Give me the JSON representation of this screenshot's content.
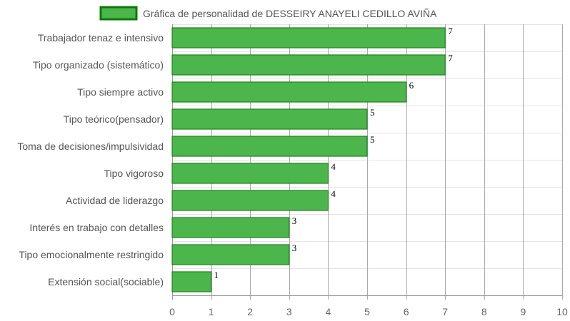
{
  "chart_data": {
    "type": "bar",
    "orientation": "horizontal",
    "title": "",
    "xlabel": "",
    "ylabel": "",
    "xlim": [
      0,
      10
    ],
    "grid": true,
    "legend_placement": "top-center",
    "categories": [
      "Trabajador tenaz e intensivo",
      "Tipo organizado (sistemático)",
      "Tipo siempre activo",
      "Tipo teórico(pensador)",
      "Toma de decisiones/impulsividad",
      "Tipo vigoroso",
      "Actividad de liderazgo",
      "Interés en trabajo con detalles",
      "Tipo emocionalmente restringido",
      "Extensión social(sociable)"
    ],
    "series": [
      {
        "name": "Gráfica de personalidad de DESSEIRY ANAYELI CEDILLO AVIÑA",
        "values": [
          7,
          7,
          6,
          5,
          5,
          4,
          4,
          3,
          3,
          1
        ],
        "color": "#4cb54c",
        "border_color": "#0b7a0b"
      }
    ],
    "x_ticks": [
      "0",
      "1",
      "2",
      "3",
      "4",
      "5",
      "6",
      "7",
      "8",
      "9",
      "10"
    ]
  }
}
